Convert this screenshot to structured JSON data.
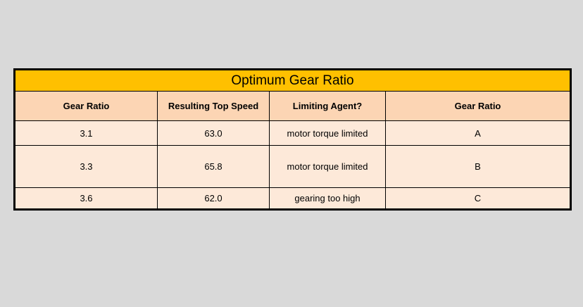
{
  "table": {
    "title": "Optimum Gear Ratio",
    "headers": [
      "Gear Ratio",
      "Resulting Top Speed",
      "Limiting Agent?",
      "Gear Ratio"
    ],
    "rows": [
      [
        "3.1",
        "63.0",
        "motor torque limited",
        "A"
      ],
      [
        "3.3",
        "65.8",
        "motor torque limited",
        "B"
      ],
      [
        "3.6",
        "62.0",
        "gearing too high",
        "C"
      ]
    ],
    "colors": {
      "title_bg": "#ffc000",
      "header_bg": "#fcd5b4",
      "row_bg": "#fde9d9",
      "page_bg": "#d9d9d9"
    }
  }
}
